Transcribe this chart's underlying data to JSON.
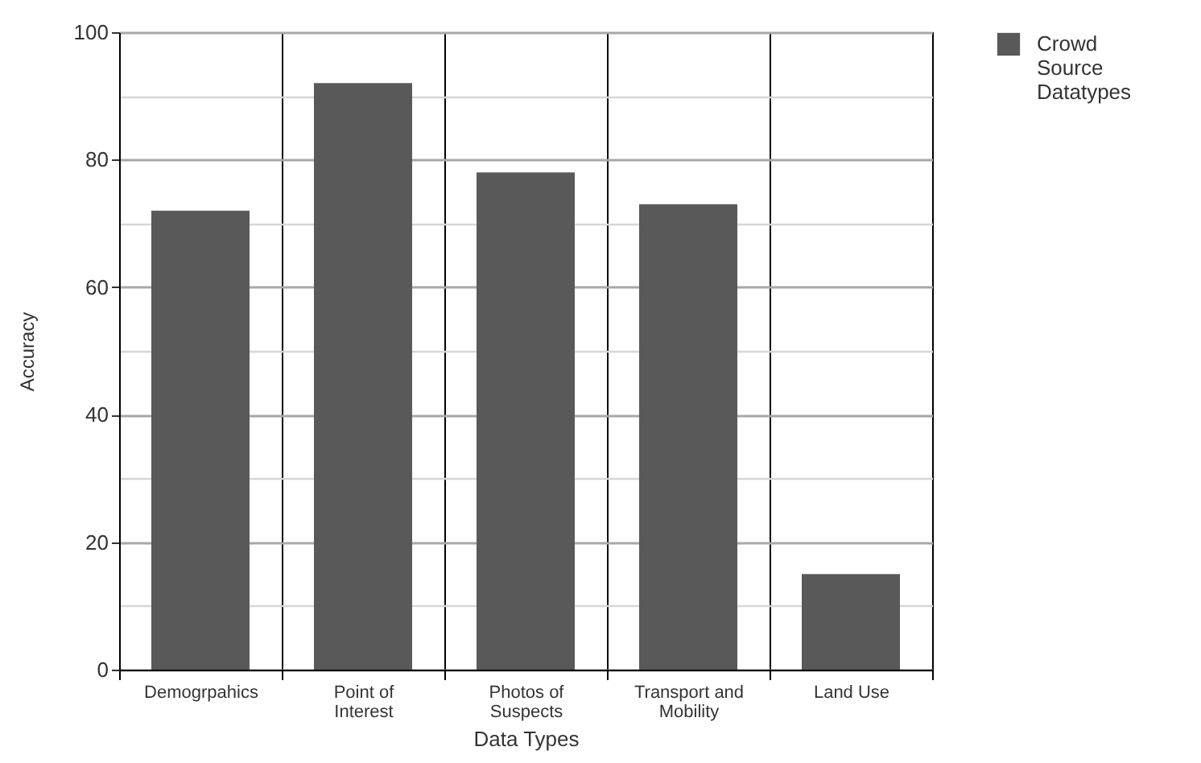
{
  "chart_data": {
    "type": "bar",
    "xlabel": "Data Types",
    "ylabel": "Accuracy",
    "categories": [
      "Demogrpahics",
      "Point of Interest",
      "Photos of Suspects",
      "Transport and Mobility",
      "Land Use"
    ],
    "series": [
      {
        "name": "Crowd Source Datatypes",
        "color": "#595959",
        "values": [
          72,
          92,
          78,
          73,
          15
        ]
      }
    ],
    "ylim": [
      0,
      100
    ],
    "yticks": [
      0,
      20,
      40,
      60,
      80,
      100
    ],
    "grid": true,
    "legend": "right"
  }
}
